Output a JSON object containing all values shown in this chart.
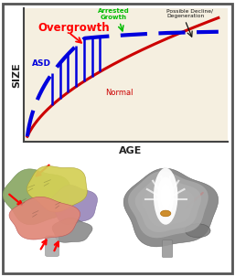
{
  "graph_bg": "#f5efe0",
  "normal_color": "#cc0000",
  "asd_color": "#0000dd",
  "overgrowth_label": "Overgrowth",
  "overgrowth_color": "#ff0000",
  "arrested_label": "Arrested\nGrowth",
  "arrested_color": "#00bb00",
  "decline_label": "Possible Decline/\nDegeneration",
  "decline_color": "#111111",
  "asd_label": "ASD",
  "normal_label": "Normal",
  "xlabel": "AGE",
  "ylabel": "SIZE",
  "brain_bg": "#0a0a0a",
  "figure_bg": "#ffffff",
  "panel_border": "#555555",
  "lobe_frontal": "#99bb66",
  "lobe_parietal": "#dddd77",
  "lobe_temporal": "#ee9988",
  "lobe_occipital": "#9988bb",
  "lobe_cerebellum": "#999999",
  "lobe_stem": "#aaaaaa"
}
